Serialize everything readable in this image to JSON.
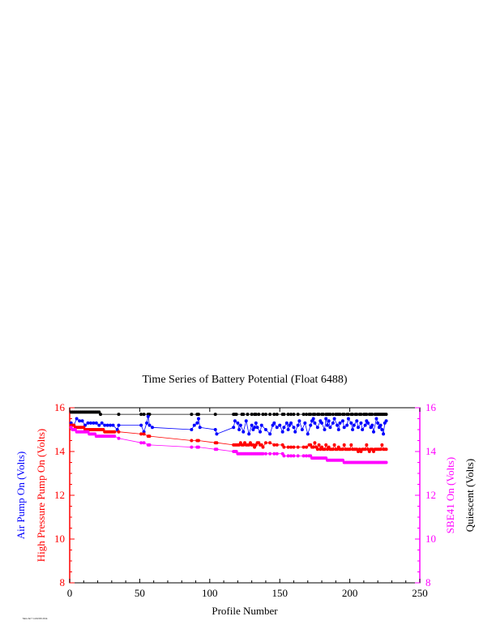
{
  "chart_data": {
    "type": "line",
    "title": "Time Series of Battery Potential (Float 6488)",
    "xlabel": "Profile Number",
    "xlim": [
      0,
      250
    ],
    "ylim": [
      8,
      16
    ],
    "x_ticks": [
      "0",
      "50",
      "100",
      "150",
      "200",
      "250"
    ],
    "y_ticks": [
      "8",
      "10",
      "12",
      "14",
      "16"
    ],
    "y_axis_labels_left": [
      {
        "text": "Air Pump On (Volts)",
        "color": "#0000ff"
      },
      {
        "text": "High Pressure Pump On (Volts)",
        "color": "#ff0000"
      }
    ],
    "y_axis_labels_right": [
      {
        "text": "SBE41 On (Volts)",
        "color": "#ff00ff"
      },
      {
        "text": "Quiescent (Volts)",
        "color": "#000000"
      }
    ],
    "left_axis_color": "#ff0000",
    "right_axis_color": "#ff00ff",
    "footnote": "Mon Jul 7 14:02:09 2014",
    "series": [
      {
        "color": "#000000",
        "x": [
          1,
          2,
          3,
          4,
          5,
          6,
          7,
          8,
          9,
          10,
          11,
          12,
          13,
          14,
          15,
          16,
          17,
          18,
          19,
          20,
          21,
          22,
          35,
          51,
          53,
          56,
          57,
          87,
          91,
          92,
          104,
          117,
          118,
          119,
          123,
          124,
          127,
          130,
          132,
          133,
          135,
          138,
          140,
          143,
          146,
          148,
          152,
          153,
          156,
          158,
          160,
          163,
          167,
          169,
          171,
          172,
          174,
          175,
          177,
          178,
          180,
          181,
          183,
          184,
          185,
          186,
          188,
          190,
          191,
          192,
          193,
          195,
          196,
          198,
          199,
          201,
          202,
          204,
          205,
          207,
          208,
          210,
          211,
          212,
          214,
          215,
          216,
          218,
          219,
          220,
          221,
          222,
          223,
          224,
          225,
          226
        ],
        "y": [
          15.8,
          15.8,
          15.8,
          15.8,
          15.8,
          15.8,
          15.8,
          15.8,
          15.8,
          15.8,
          15.8,
          15.8,
          15.8,
          15.8,
          15.8,
          15.8,
          15.8,
          15.8,
          15.8,
          15.8,
          15.8,
          15.7,
          15.7,
          15.7,
          15.7,
          15.7,
          15.7,
          15.7,
          15.7,
          15.7,
          15.7,
          15.7,
          15.7,
          15.7,
          15.7,
          15.7,
          15.7,
          15.7,
          15.7,
          15.7,
          15.7,
          15.7,
          15.7,
          15.7,
          15.7,
          15.7,
          15.7,
          15.7,
          15.7,
          15.7,
          15.7,
          15.7,
          15.7,
          15.7,
          15.7,
          15.7,
          15.7,
          15.7,
          15.7,
          15.7,
          15.7,
          15.7,
          15.7,
          15.7,
          15.7,
          15.7,
          15.7,
          15.7,
          15.7,
          15.7,
          15.7,
          15.7,
          15.7,
          15.7,
          15.7,
          15.7,
          15.7,
          15.7,
          15.7,
          15.7,
          15.7,
          15.7,
          15.7,
          15.7,
          15.7,
          15.7,
          15.7,
          15.7,
          15.7,
          15.7,
          15.7,
          15.7,
          15.7,
          15.7,
          15.7,
          15.7
        ]
      },
      {
        "color": "#0000ff",
        "x": [
          1,
          3,
          5,
          7,
          9,
          11,
          13,
          15,
          17,
          19,
          21,
          23,
          25,
          27,
          29,
          31,
          34,
          35,
          51,
          53,
          55,
          56,
          57,
          59,
          87,
          89,
          91,
          92,
          93,
          104,
          105,
          117,
          118,
          120,
          121,
          122,
          124,
          126,
          128,
          130,
          131,
          132,
          133,
          134,
          136,
          137,
          140,
          143,
          145,
          146,
          148,
          150,
          152,
          153,
          155,
          156,
          157,
          158,
          160,
          161,
          163,
          164,
          166,
          168,
          170,
          172,
          173,
          174,
          175,
          177,
          179,
          180,
          182,
          183,
          184,
          185,
          186,
          188,
          189,
          191,
          192,
          193,
          195,
          196,
          198,
          199,
          201,
          202,
          203,
          205,
          206,
          208,
          209,
          211,
          212,
          213,
          215,
          216,
          217,
          219,
          220,
          221,
          222,
          223,
          224,
          225,
          226
        ],
        "y": [
          15.3,
          15.2,
          15.5,
          15.4,
          15.4,
          15.2,
          15.3,
          15.3,
          15.3,
          15.3,
          15.2,
          15.3,
          15.2,
          15.2,
          15.2,
          15.2,
          15.0,
          15.2,
          15.2,
          14.9,
          15.3,
          15.6,
          15.2,
          15.1,
          15.0,
          15.2,
          15.3,
          15.5,
          15.1,
          15.0,
          14.8,
          15.1,
          15.4,
          15.3,
          15.0,
          15.2,
          14.9,
          15.4,
          14.8,
          15.2,
          15.0,
          15.1,
          15.3,
          15.1,
          14.9,
          15.2,
          15.0,
          14.8,
          15.2,
          15.3,
          15.1,
          15.2,
          14.9,
          15.1,
          15.3,
          15.0,
          15.2,
          15.3,
          15.1,
          14.9,
          15.2,
          15.4,
          15.0,
          15.3,
          14.8,
          15.2,
          15.4,
          15.5,
          15.3,
          15.1,
          15.4,
          15.3,
          15.0,
          15.5,
          15.2,
          15.4,
          15.1,
          15.3,
          15.5,
          15.2,
          15.0,
          15.3,
          15.4,
          15.1,
          15.2,
          15.5,
          15.3,
          15.0,
          15.2,
          15.4,
          15.1,
          15.3,
          15.0,
          15.2,
          15.4,
          15.3,
          15.1,
          15.2,
          14.9,
          15.5,
          15.3,
          15.1,
          15.2,
          15.0,
          14.8,
          15.3,
          15.4
        ]
      },
      {
        "color": "#ff0000",
        "x": [
          1,
          2,
          3,
          4,
          5,
          6,
          7,
          8,
          9,
          10,
          11,
          12,
          13,
          14,
          15,
          16,
          17,
          18,
          19,
          20,
          21,
          22,
          23,
          24,
          25,
          26,
          27,
          28,
          29,
          30,
          31,
          32,
          35,
          51,
          53,
          56,
          57,
          87,
          91,
          92,
          104,
          105,
          117,
          118,
          119,
          120,
          121,
          122,
          123,
          124,
          125,
          126,
          127,
          128,
          129,
          130,
          131,
          132,
          133,
          134,
          135,
          136,
          137,
          138,
          140,
          143,
          146,
          148,
          152,
          153,
          156,
          158,
          160,
          163,
          167,
          169,
          171,
          172,
          173,
          174,
          175,
          176,
          177,
          178,
          179,
          180,
          181,
          182,
          183,
          184,
          185,
          186,
          187,
          188,
          189,
          190,
          191,
          192,
          193,
          194,
          195,
          196,
          197,
          198,
          199,
          200,
          201,
          202,
          203,
          204,
          205,
          206,
          207,
          208,
          209,
          210,
          211,
          212,
          213,
          214,
          215,
          216,
          217,
          218,
          219,
          220,
          221,
          222,
          223,
          224,
          225,
          226
        ],
        "y": [
          15.2,
          15.2,
          15.2,
          15.1,
          15.1,
          15.1,
          15.1,
          15.1,
          15.1,
          15.1,
          15.0,
          15.0,
          15.0,
          15.0,
          15.0,
          15.0,
          15.0,
          15.0,
          15.0,
          15.0,
          15.0,
          15.0,
          15.0,
          15.0,
          14.9,
          14.9,
          14.9,
          14.9,
          14.9,
          14.9,
          14.9,
          14.9,
          14.9,
          14.8,
          14.8,
          14.7,
          14.7,
          14.5,
          14.5,
          14.5,
          14.4,
          14.4,
          14.3,
          14.3,
          14.3,
          14.3,
          14.3,
          14.4,
          14.3,
          14.3,
          14.4,
          14.3,
          14.3,
          14.3,
          14.4,
          14.3,
          14.3,
          14.2,
          14.3,
          14.4,
          14.4,
          14.3,
          14.3,
          14.2,
          14.4,
          14.4,
          14.3,
          14.3,
          14.3,
          14.2,
          14.2,
          14.2,
          14.2,
          14.2,
          14.2,
          14.2,
          14.3,
          14.3,
          14.2,
          14.2,
          14.4,
          14.2,
          14.1,
          14.3,
          14.1,
          14.2,
          14.1,
          14.1,
          14.3,
          14.1,
          14.2,
          14.1,
          14.1,
          14.1,
          14.3,
          14.1,
          14.1,
          14.2,
          14.1,
          14.1,
          14.1,
          14.3,
          14.1,
          14.1,
          14.1,
          14.1,
          14.3,
          14.1,
          14.1,
          14.1,
          14.1,
          14.0,
          14.1,
          14.0,
          14.1,
          14.1,
          14.1,
          14.3,
          14.1,
          14.0,
          14.1,
          14.1,
          14.0,
          14.1,
          14.1,
          14.1,
          14.1,
          14.1,
          14.3,
          14.1,
          14.1,
          14.1
        ]
      },
      {
        "color": "#ff00ff",
        "x": [
          1,
          2,
          3,
          4,
          5,
          6,
          7,
          8,
          9,
          10,
          11,
          12,
          13,
          14,
          15,
          16,
          17,
          18,
          19,
          20,
          21,
          22,
          23,
          24,
          25,
          26,
          27,
          28,
          29,
          30,
          31,
          32,
          35,
          51,
          53,
          56,
          57,
          87,
          91,
          92,
          104,
          105,
          117,
          118,
          119,
          120,
          121,
          122,
          123,
          124,
          125,
          126,
          127,
          128,
          129,
          130,
          131,
          132,
          133,
          134,
          135,
          136,
          137,
          138,
          140,
          143,
          146,
          148,
          152,
          153,
          156,
          158,
          160,
          163,
          167,
          169,
          171,
          172,
          173,
          174,
          175,
          176,
          177,
          178,
          179,
          180,
          181,
          182,
          183,
          184,
          185,
          186,
          187,
          188,
          189,
          190,
          191,
          192,
          193,
          194,
          195,
          196,
          197,
          198,
          199,
          200,
          201,
          202,
          203,
          204,
          205,
          206,
          207,
          208,
          209,
          210,
          211,
          212,
          213,
          214,
          215,
          216,
          217,
          218,
          219,
          220,
          221,
          222,
          223,
          224,
          225,
          226
        ],
        "y": [
          15.1,
          15.0,
          15.0,
          15.0,
          14.9,
          14.9,
          14.9,
          14.9,
          14.9,
          14.9,
          14.9,
          14.9,
          14.9,
          14.8,
          14.8,
          14.8,
          14.8,
          14.8,
          14.7,
          14.7,
          14.7,
          14.7,
          14.7,
          14.7,
          14.7,
          14.7,
          14.7,
          14.7,
          14.7,
          14.7,
          14.7,
          14.7,
          14.6,
          14.4,
          14.4,
          14.3,
          14.3,
          14.2,
          14.2,
          14.2,
          14.1,
          14.1,
          14.0,
          14.0,
          14.0,
          13.9,
          13.9,
          13.9,
          13.9,
          13.9,
          13.9,
          13.9,
          13.9,
          13.9,
          13.9,
          13.9,
          13.9,
          13.9,
          13.9,
          13.9,
          13.9,
          13.9,
          13.9,
          13.9,
          13.9,
          13.9,
          13.9,
          13.9,
          13.9,
          13.8,
          13.8,
          13.8,
          13.8,
          13.8,
          13.8,
          13.8,
          13.8,
          13.8,
          13.7,
          13.7,
          13.7,
          13.7,
          13.7,
          13.7,
          13.7,
          13.7,
          13.7,
          13.7,
          13.7,
          13.6,
          13.6,
          13.6,
          13.6,
          13.6,
          13.6,
          13.6,
          13.6,
          13.6,
          13.6,
          13.6,
          13.6,
          13.5,
          13.5,
          13.5,
          13.5,
          13.5,
          13.5,
          13.5,
          13.5,
          13.5,
          13.5,
          13.5,
          13.5,
          13.5,
          13.5,
          13.5,
          13.5,
          13.5,
          13.5,
          13.5,
          13.5,
          13.5,
          13.5,
          13.5,
          13.5,
          13.5,
          13.5,
          13.5,
          13.5,
          13.5,
          13.5,
          13.5
        ]
      }
    ]
  }
}
